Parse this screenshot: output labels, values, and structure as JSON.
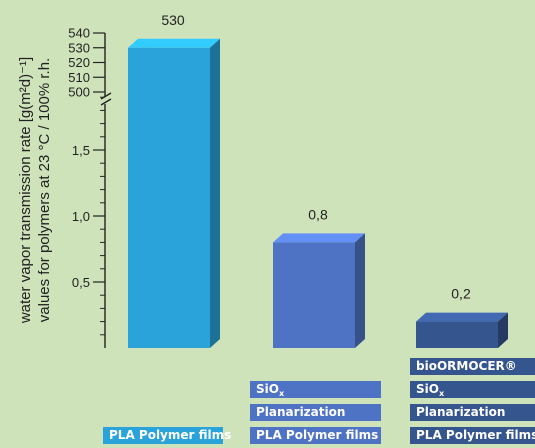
{
  "chart_data": {
    "type": "bar",
    "ylabel_line1": "water vapor transmission rate [g(m²d)⁻¹]",
    "ylabel_line2": "values for polymers at 23 °C / 100% r.h.",
    "axis_break": true,
    "lower_axis": {
      "range": [
        0,
        2.0
      ],
      "ticks": [
        0.5,
        1.0,
        1.5
      ],
      "tick_labels": [
        "0,5",
        "1,0",
        "1,5"
      ]
    },
    "upper_axis": {
      "range": [
        500,
        540
      ],
      "ticks": [
        500,
        510,
        520,
        530,
        540
      ],
      "tick_labels": [
        "500",
        "510",
        "520",
        "530",
        "540"
      ]
    },
    "bars": [
      {
        "value": 530,
        "label": "530",
        "color": "#29a3d9",
        "layers": [
          "PLA Polymer films"
        ]
      },
      {
        "value": 0.8,
        "label": "0,8",
        "color": "#4f73c4",
        "layers": [
          "SiO",
          "Planarization",
          "PLA Polymer films"
        ]
      },
      {
        "value": 0.2,
        "label": "0,2",
        "color": "#35558f",
        "layers": [
          "bioORMOCER®",
          "SiO",
          "Planarization",
          "PLA Polymer films"
        ]
      }
    ],
    "siox_subscript": "x",
    "grid": false,
    "legend": "none"
  }
}
